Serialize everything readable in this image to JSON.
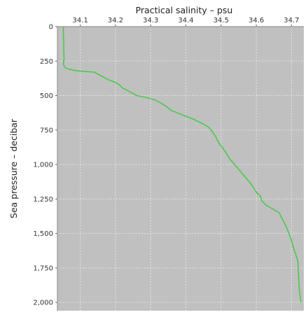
{
  "chart_data": {
    "type": "line",
    "xlabel": "Practical salinity – psu",
    "ylabel": "Sea pressure – decibar",
    "x_axis_position": "top",
    "y_axis_inverted": true,
    "xlim": [
      34.035,
      34.735
    ],
    "ylim": [
      0,
      2060
    ],
    "x_ticks": [
      34.1,
      34.2,
      34.3,
      34.4,
      34.5,
      34.6,
      34.7
    ],
    "x_tick_labels": [
      "34.1",
      "34.2",
      "34.3",
      "34.4",
      "34.5",
      "34.6",
      "34.7"
    ],
    "y_ticks": [
      0,
      250,
      500,
      750,
      1000,
      1250,
      1500,
      1750,
      2000
    ],
    "y_tick_labels": [
      "0",
      "250",
      "500",
      "750",
      "1,000",
      "1,250",
      "1,500",
      "1,750",
      "2,000"
    ],
    "grid": true,
    "plot_background": "#c0c0c0",
    "grid_color": "#e4e4e4",
    "series": [
      {
        "color": "#4cc84c",
        "points": [
          [
            34.052,
            0
          ],
          [
            34.052,
            60
          ],
          [
            34.053,
            120
          ],
          [
            34.053,
            180
          ],
          [
            34.054,
            230
          ],
          [
            34.052,
            270
          ],
          [
            34.054,
            285
          ],
          [
            34.058,
            300
          ],
          [
            34.07,
            310
          ],
          [
            34.085,
            318
          ],
          [
            34.11,
            325
          ],
          [
            34.14,
            330
          ],
          [
            34.15,
            345
          ],
          [
            34.165,
            365
          ],
          [
            34.18,
            385
          ],
          [
            34.2,
            405
          ],
          [
            34.21,
            420
          ],
          [
            34.22,
            445
          ],
          [
            34.235,
            465
          ],
          [
            34.25,
            485
          ],
          [
            34.26,
            500
          ],
          [
            34.29,
            515
          ],
          [
            34.315,
            535
          ],
          [
            34.33,
            555
          ],
          [
            34.345,
            580
          ],
          [
            34.36,
            610
          ],
          [
            34.39,
            640
          ],
          [
            34.42,
            670
          ],
          [
            34.445,
            700
          ],
          [
            34.465,
            730
          ],
          [
            34.475,
            760
          ],
          [
            34.485,
            800
          ],
          [
            34.495,
            850
          ],
          [
            34.51,
            900
          ],
          [
            34.525,
            960
          ],
          [
            34.545,
            1020
          ],
          [
            34.565,
            1080
          ],
          [
            34.585,
            1140
          ],
          [
            34.6,
            1200
          ],
          [
            34.612,
            1230
          ],
          [
            34.615,
            1260
          ],
          [
            34.625,
            1290
          ],
          [
            34.645,
            1320
          ],
          [
            34.665,
            1350
          ],
          [
            34.675,
            1400
          ],
          [
            34.685,
            1450
          ],
          [
            34.693,
            1500
          ],
          [
            34.7,
            1550
          ],
          [
            34.705,
            1600
          ],
          [
            34.712,
            1650
          ],
          [
            34.718,
            1700
          ],
          [
            34.72,
            1800
          ],
          [
            34.722,
            1900
          ],
          [
            34.725,
            1970
          ],
          [
            34.727,
            2000
          ]
        ]
      }
    ]
  }
}
